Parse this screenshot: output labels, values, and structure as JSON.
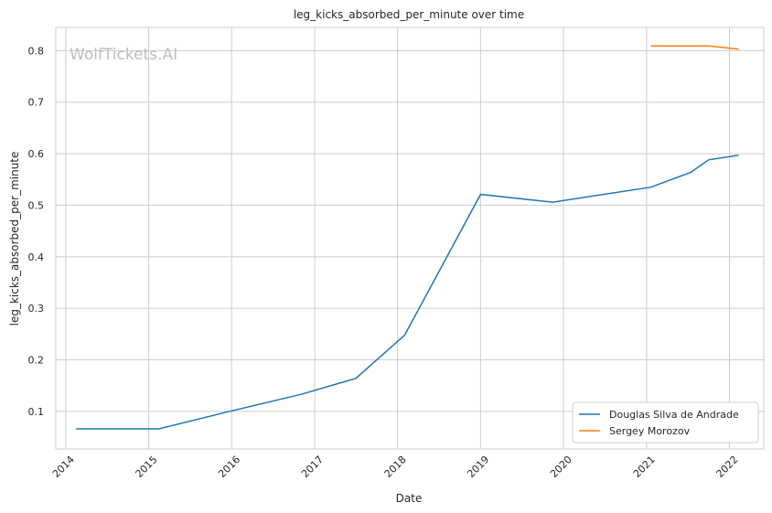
{
  "watermark": "WolfTickets.AI",
  "chart_data": {
    "type": "line",
    "title": "leg_kicks_absorbed_per_minute over time",
    "xlabel": "Date",
    "ylabel": "leg_kicks_absorbed_per_minute",
    "x_ticks": [
      "2014",
      "2015",
      "2016",
      "2017",
      "2018",
      "2019",
      "2020",
      "2021",
      "2022"
    ],
    "y_ticks": [
      "0.1",
      "0.2",
      "0.3",
      "0.4",
      "0.5",
      "0.6",
      "0.7",
      "0.8"
    ],
    "xlim": [
      "2013-11-18",
      "2022-06-01"
    ],
    "ylim": [
      0.027,
      0.845
    ],
    "grid": true,
    "legend_position": "lower-right",
    "series": [
      {
        "name": "Douglas Silva de Andrade",
        "color": "#1f77b4",
        "points": [
          {
            "x": "2014-02-15",
            "y": 0.066
          },
          {
            "x": "2015-02-15",
            "y": 0.066
          },
          {
            "x": "2016-01-01",
            "y": 0.101
          },
          {
            "x": "2016-11-01",
            "y": 0.133
          },
          {
            "x": "2017-07-01",
            "y": 0.164
          },
          {
            "x": "2018-02-01",
            "y": 0.248
          },
          {
            "x": "2019-01-01",
            "y": 0.521
          },
          {
            "x": "2019-11-15",
            "y": 0.506
          },
          {
            "x": "2021-01-20",
            "y": 0.535
          },
          {
            "x": "2021-07-15",
            "y": 0.564
          },
          {
            "x": "2021-10-01",
            "y": 0.588
          },
          {
            "x": "2022-02-10",
            "y": 0.597
          }
        ]
      },
      {
        "name": "Sergey Morozov",
        "color": "#ff7f0e",
        "points": [
          {
            "x": "2021-01-20",
            "y": 0.809
          },
          {
            "x": "2021-10-01",
            "y": 0.809
          },
          {
            "x": "2022-02-10",
            "y": 0.803
          }
        ]
      }
    ]
  }
}
